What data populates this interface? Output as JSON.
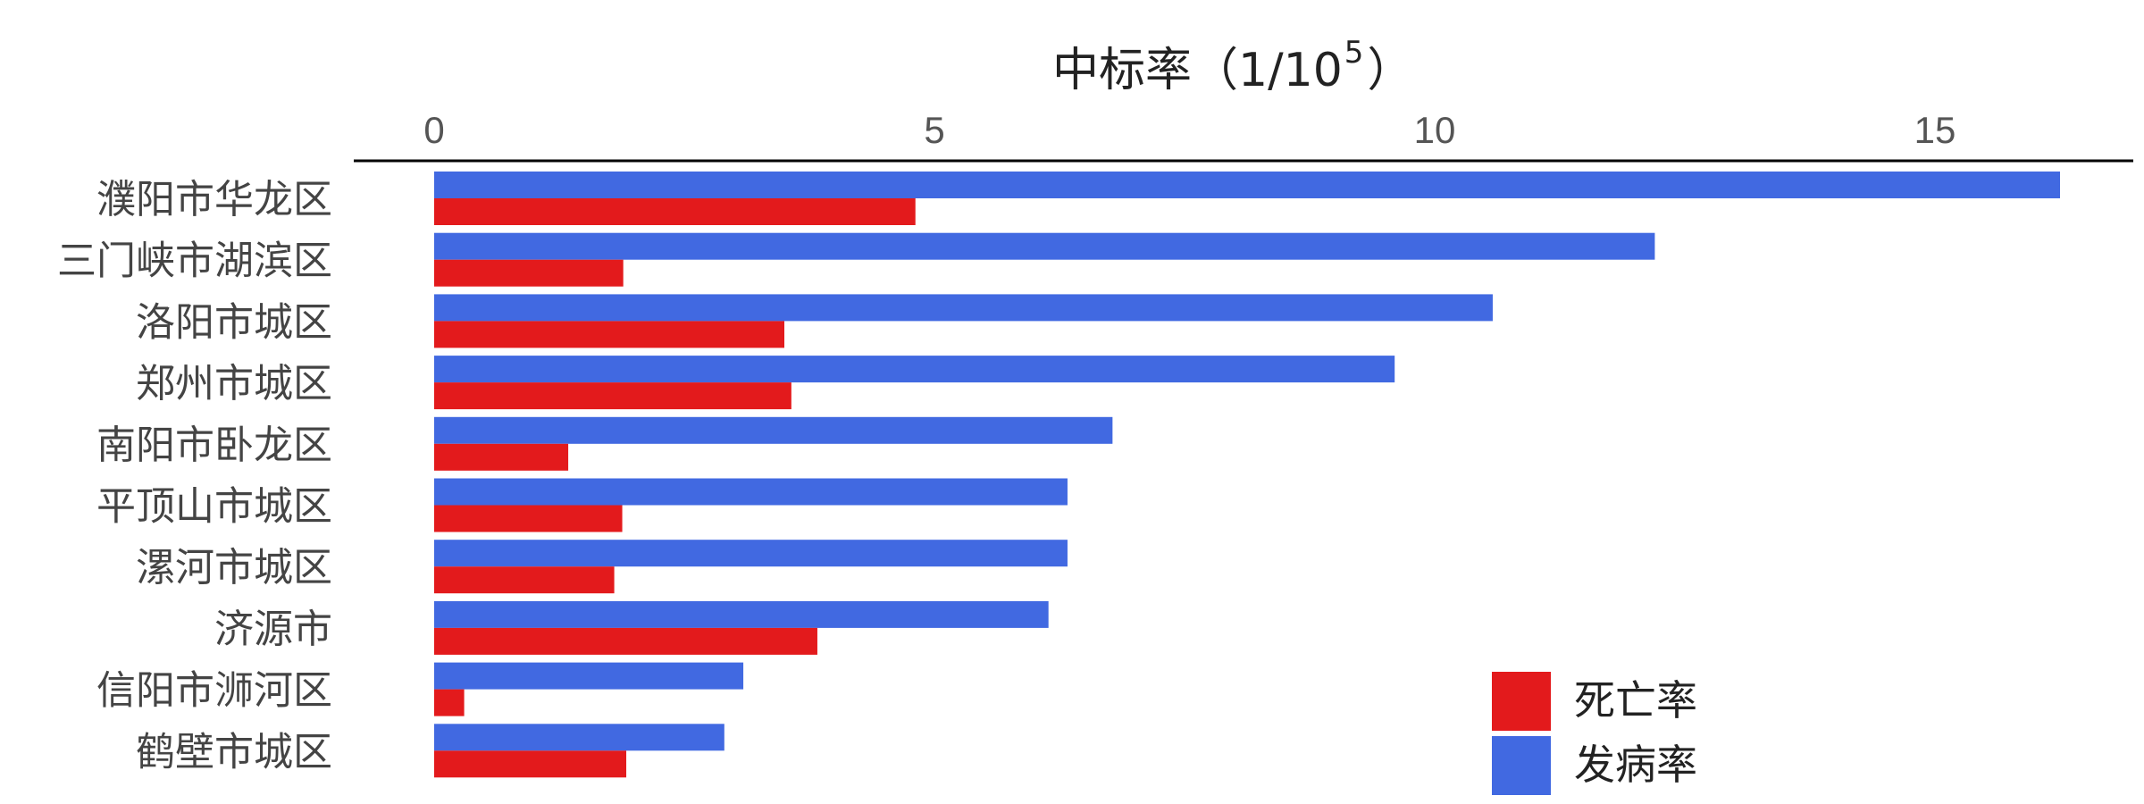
{
  "chart_data": {
    "type": "bar",
    "orientation": "horizontal",
    "x_axis_position": "top",
    "xlabel": {
      "text": "中标率（1/10",
      "superscript": "5",
      "suffix": "）"
    },
    "xlim": [
      0,
      16.9
    ],
    "xticks": [
      0,
      5,
      10,
      15
    ],
    "categories": [
      "濮阳市华龙区",
      "三门峡市湖滨区",
      "洛阳市城区",
      "郑州市城区",
      "南阳市卧龙区",
      "平顶山市城区",
      "漯河市城区",
      "济源市",
      "信阳市浉河区",
      "鹤壁市城区"
    ],
    "series": [
      {
        "name": "发病率",
        "color": "#4169E1",
        "values": [
          16.25,
          12.2,
          10.58,
          9.6,
          6.78,
          6.33,
          6.33,
          6.14,
          3.09,
          2.9
        ]
      },
      {
        "name": "死亡率",
        "color": "#E31A1C",
        "values": [
          4.81,
          1.89,
          3.5,
          3.57,
          1.34,
          1.88,
          1.8,
          3.83,
          0.3,
          1.92
        ]
      }
    ],
    "legend": {
      "position": "bottom-right",
      "order": [
        "死亡率",
        "发病率"
      ]
    },
    "grid": false
  }
}
